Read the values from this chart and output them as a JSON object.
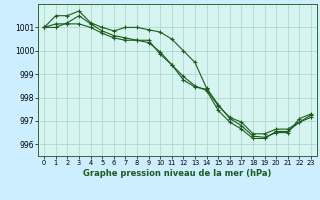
{
  "title": "Graphe pression niveau de la mer (hPa)",
  "bg_color": "#cceeff",
  "plot_bg_color": "#d6f5f0",
  "grid_color": "#b0d8ce",
  "line_color": "#1a5c1a",
  "ylim": [
    995.5,
    1002.0
  ],
  "xlim": [
    -0.5,
    23.5
  ],
  "yticks": [
    996,
    997,
    998,
    999,
    1000,
    1001
  ],
  "xticks": [
    0,
    1,
    2,
    3,
    4,
    5,
    6,
    7,
    8,
    9,
    10,
    11,
    12,
    13,
    14,
    15,
    16,
    17,
    18,
    19,
    20,
    21,
    22,
    23
  ],
  "series1": [
    1001.0,
    1001.5,
    1001.5,
    1001.7,
    1001.2,
    1001.0,
    1000.85,
    1001.0,
    1001.0,
    1000.9,
    1000.8,
    1000.5,
    1000.0,
    999.5,
    998.4,
    997.7,
    997.1,
    996.8,
    996.35,
    996.3,
    996.5,
    996.5,
    997.1,
    997.3
  ],
  "series2": [
    1001.0,
    1001.15,
    1001.15,
    1001.15,
    1001.0,
    1000.75,
    1000.55,
    1000.45,
    1000.45,
    1000.45,
    999.85,
    999.4,
    998.75,
    998.45,
    998.35,
    997.65,
    997.15,
    996.95,
    996.45,
    996.45,
    996.65,
    996.65,
    996.95,
    997.25
  ],
  "series3": [
    1001.0,
    1001.0,
    1001.2,
    1001.5,
    1001.15,
    1000.85,
    1000.65,
    1000.55,
    1000.45,
    1000.35,
    999.95,
    999.4,
    998.9,
    998.5,
    998.3,
    997.45,
    996.95,
    996.65,
    996.25,
    996.25,
    996.55,
    996.55,
    996.95,
    997.15
  ]
}
